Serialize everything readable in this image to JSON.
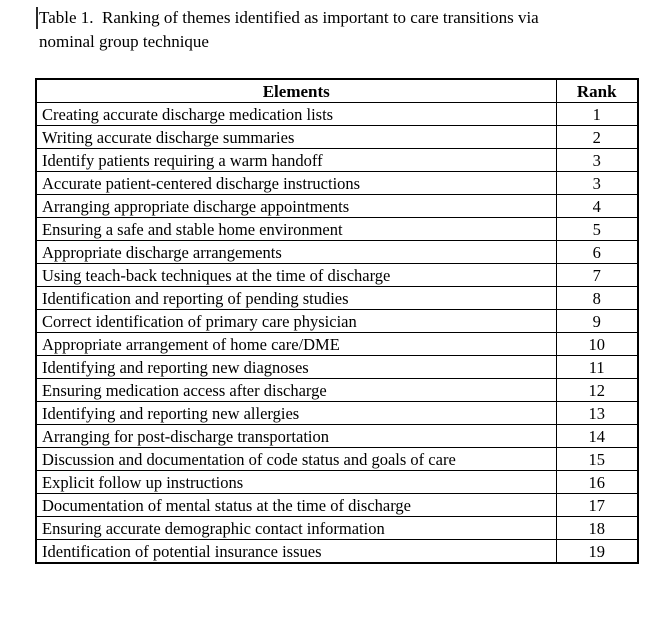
{
  "document": {
    "title_line1": "Table 1.  Ranking of themes identified as important to care transitions via",
    "title_line2": "nominal group technique",
    "text_color": "#000000",
    "background_color": "#ffffff",
    "border_color": "#000000"
  },
  "table": {
    "header": {
      "elements": "Elements",
      "rank": "Rank"
    },
    "rows": [
      {
        "element": "Creating accurate discharge medication lists",
        "rank": "1"
      },
      {
        "element": "Writing accurate discharge summaries",
        "rank": "2"
      },
      {
        "element": "Identify patients requiring a warm handoff",
        "rank": "3"
      },
      {
        "element": "Accurate patient-centered discharge instructions",
        "rank": "3"
      },
      {
        "element": "Arranging appropriate discharge appointments",
        "rank": "4"
      },
      {
        "element": "Ensuring a safe and stable home environment",
        "rank": "5"
      },
      {
        "element": "Appropriate discharge arrangements",
        "rank": "6"
      },
      {
        "element": "Using teach-back techniques at the time of discharge",
        "rank": "7"
      },
      {
        "element": "Identification and reporting of pending studies",
        "rank": "8"
      },
      {
        "element": "Correct identification of primary care physician",
        "rank": "9"
      },
      {
        "element": "Appropriate arrangement of home care/DME",
        "rank": "10"
      },
      {
        "element": "Identifying and reporting new diagnoses",
        "rank": "11"
      },
      {
        "element": "Ensuring medication access after discharge",
        "rank": "12"
      },
      {
        "element": "Identifying and reporting new allergies",
        "rank": "13"
      },
      {
        "element": "Arranging for post-discharge transportation",
        "rank": "14"
      },
      {
        "element": "Discussion and documentation of code status and goals of care",
        "rank": "15"
      },
      {
        "element": "Explicit follow up instructions",
        "rank": "16"
      },
      {
        "element": "Documentation of mental status at the time of discharge",
        "rank": "17"
      },
      {
        "element": "Ensuring accurate demographic contact information",
        "rank": "18"
      },
      {
        "element": "Identification of potential insurance issues",
        "rank": "19"
      }
    ]
  }
}
